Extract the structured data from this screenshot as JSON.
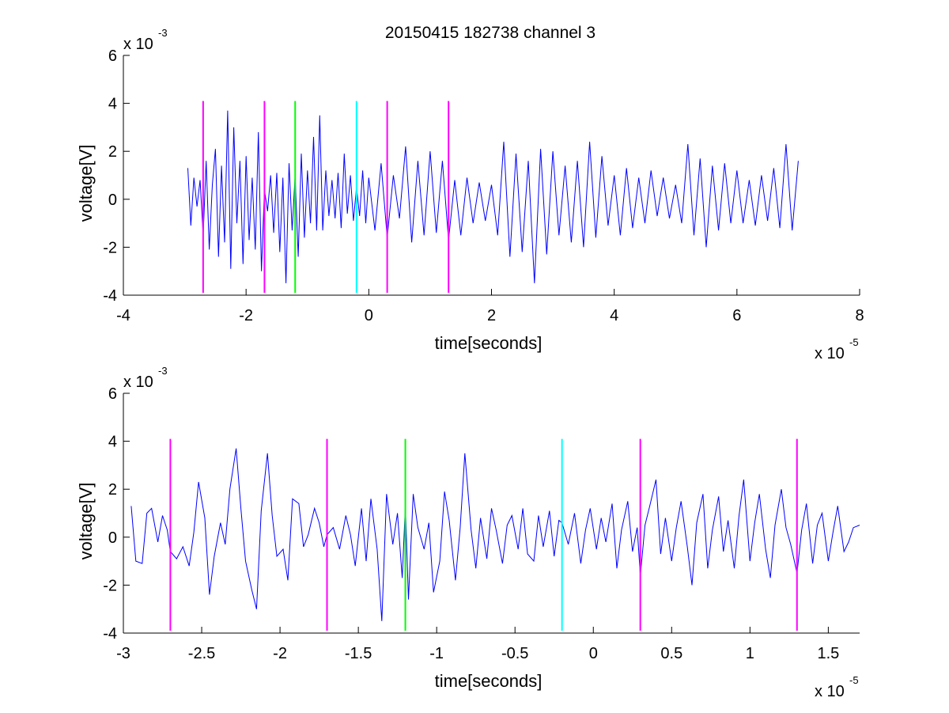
{
  "figure": {
    "title": "20150415 182738 channel 3"
  },
  "chart_data": [
    {
      "type": "line",
      "title": "20150415 182738 channel 3",
      "xlabel": "time[seconds]",
      "ylabel": "voltage[V]",
      "x_multiplier_base": "x 10",
      "x_multiplier_exp": "-5",
      "y_multiplier_base": "x 10",
      "y_multiplier_exp": "-3",
      "xlim": [
        -4,
        8
      ],
      "ylim": [
        -4,
        6
      ],
      "xticks": [
        -4,
        -2,
        0,
        2,
        4,
        6,
        8
      ],
      "xtick_labels": [
        "-4",
        "-2",
        "0",
        "2",
        "4",
        "6",
        "8"
      ],
      "yticks": [
        -4,
        -2,
        0,
        2,
        4,
        6
      ],
      "ytick_labels": [
        "-4",
        "-2",
        "0",
        "2",
        "4",
        "6"
      ],
      "grid": false,
      "signal_color": "#0000ff",
      "signal_x_range": [
        -2.95,
        7.0
      ],
      "signal_points": [
        [
          -2.95,
          1.3
        ],
        [
          -2.9,
          -1.1
        ],
        [
          -2.85,
          0.9
        ],
        [
          -2.8,
          -0.3
        ],
        [
          -2.75,
          0.8
        ],
        [
          -2.7,
          -1.5
        ],
        [
          -2.65,
          1.6
        ],
        [
          -2.6,
          -2.1
        ],
        [
          -2.55,
          0.6
        ],
        [
          -2.5,
          2.1
        ],
        [
          -2.45,
          -2.4
        ],
        [
          -2.4,
          1.4
        ],
        [
          -2.35,
          -1.8
        ],
        [
          -2.3,
          3.7
        ],
        [
          -2.25,
          -2.9
        ],
        [
          -2.2,
          3.0
        ],
        [
          -2.15,
          -1.0
        ],
        [
          -2.1,
          1.6
        ],
        [
          -2.05,
          -2.7
        ],
        [
          -2.0,
          1.8
        ],
        [
          -1.95,
          -1.7
        ],
        [
          -1.9,
          0.9
        ],
        [
          -1.85,
          -2.1
        ],
        [
          -1.8,
          2.8
        ],
        [
          -1.75,
          -3.0
        ],
        [
          -1.7,
          0.4
        ],
        [
          -1.65,
          -0.5
        ],
        [
          -1.6,
          1.0
        ],
        [
          -1.55,
          -1.4
        ],
        [
          -1.5,
          1.1
        ],
        [
          -1.45,
          -2.2
        ],
        [
          -1.4,
          0.9
        ],
        [
          -1.35,
          -3.5
        ],
        [
          -1.3,
          1.5
        ],
        [
          -1.25,
          -1.3
        ],
        [
          -1.2,
          1.0
        ],
        [
          -1.15,
          -2.4
        ],
        [
          -1.1,
          1.9
        ],
        [
          -1.05,
          -1.6
        ],
        [
          -1.0,
          1.2
        ],
        [
          -0.95,
          -1.0
        ],
        [
          -0.9,
          2.6
        ],
        [
          -0.85,
          -1.3
        ],
        [
          -0.8,
          3.5
        ],
        [
          -0.75,
          -1.3
        ],
        [
          -0.7,
          1.2
        ],
        [
          -0.65,
          -0.7
        ],
        [
          -0.6,
          0.8
        ],
        [
          -0.55,
          -0.8
        ],
        [
          -0.5,
          1.1
        ],
        [
          -0.45,
          -1.2
        ],
        [
          -0.4,
          1.9
        ],
        [
          -0.35,
          -0.6
        ],
        [
          -0.3,
          1.0
        ],
        [
          -0.25,
          -0.9
        ],
        [
          -0.2,
          0.5
        ],
        [
          -0.15,
          -0.7
        ],
        [
          -0.1,
          1.2
        ],
        [
          -0.05,
          -1.0
        ],
        [
          0.0,
          0.9
        ],
        [
          0.1,
          -1.3
        ],
        [
          0.2,
          1.5
        ],
        [
          0.3,
          -1.6
        ],
        [
          0.4,
          1.0
        ],
        [
          0.5,
          -0.8
        ],
        [
          0.6,
          2.2
        ],
        [
          0.7,
          -1.8
        ],
        [
          0.8,
          1.6
        ],
        [
          0.9,
          -1.5
        ],
        [
          1.0,
          2.0
        ],
        [
          1.1,
          -1.4
        ],
        [
          1.2,
          1.6
        ],
        [
          1.3,
          -1.7
        ],
        [
          1.4,
          0.8
        ],
        [
          1.5,
          -1.5
        ],
        [
          1.6,
          0.9
        ],
        [
          1.7,
          -1.0
        ],
        [
          1.8,
          0.7
        ],
        [
          1.9,
          -0.9
        ],
        [
          2.0,
          0.6
        ],
        [
          2.1,
          -1.5
        ],
        [
          2.2,
          2.4
        ],
        [
          2.3,
          -2.4
        ],
        [
          2.4,
          1.9
        ],
        [
          2.5,
          -2.2
        ],
        [
          2.6,
          1.6
        ],
        [
          2.7,
          -3.5
        ],
        [
          2.8,
          2.1
        ],
        [
          2.9,
          -2.3
        ],
        [
          3.0,
          2.0
        ],
        [
          3.1,
          -1.5
        ],
        [
          3.2,
          1.4
        ],
        [
          3.3,
          -1.8
        ],
        [
          3.4,
          1.6
        ],
        [
          3.5,
          -2.0
        ],
        [
          3.6,
          2.4
        ],
        [
          3.7,
          -1.6
        ],
        [
          3.8,
          1.8
        ],
        [
          3.9,
          -1.1
        ],
        [
          4.0,
          1.0
        ],
        [
          4.1,
          -1.5
        ],
        [
          4.2,
          1.3
        ],
        [
          4.3,
          -1.2
        ],
        [
          4.4,
          0.9
        ],
        [
          4.5,
          -1.0
        ],
        [
          4.6,
          1.2
        ],
        [
          4.7,
          -0.7
        ],
        [
          4.8,
          0.9
        ],
        [
          4.9,
          -0.8
        ],
        [
          5.0,
          0.6
        ],
        [
          5.1,
          -1.0
        ],
        [
          5.2,
          2.3
        ],
        [
          5.3,
          -1.5
        ],
        [
          5.4,
          1.7
        ],
        [
          5.5,
          -2.0
        ],
        [
          5.6,
          1.4
        ],
        [
          5.7,
          -1.3
        ],
        [
          5.8,
          1.5
        ],
        [
          5.9,
          -1.0
        ],
        [
          6.0,
          1.2
        ],
        [
          6.1,
          -1.0
        ],
        [
          6.2,
          0.8
        ],
        [
          6.3,
          -1.1
        ],
        [
          6.4,
          1.0
        ],
        [
          6.5,
          -0.9
        ],
        [
          6.6,
          1.3
        ],
        [
          6.7,
          -1.2
        ],
        [
          6.8,
          2.3
        ],
        [
          6.9,
          -1.3
        ],
        [
          7.0,
          1.6
        ]
      ],
      "vertical_markers": [
        {
          "x": -2.7,
          "color": "#ff00ff"
        },
        {
          "x": -1.7,
          "color": "#ff00ff"
        },
        {
          "x": -1.2,
          "color": "#00ff00"
        },
        {
          "x": -0.2,
          "color": "#00ffff"
        },
        {
          "x": 0.3,
          "color": "#ff00ff"
        },
        {
          "x": 1.3,
          "color": "#ff00ff"
        }
      ],
      "marker_y_range": [
        -3.9,
        4.1
      ]
    },
    {
      "type": "line",
      "xlabel": "time[seconds]",
      "ylabel": "voltage[V]",
      "x_multiplier_base": "x 10",
      "x_multiplier_exp": "-5",
      "y_multiplier_base": "x 10",
      "y_multiplier_exp": "-3",
      "xlim": [
        -3.0,
        1.7
      ],
      "ylim": [
        -4,
        6
      ],
      "xticks": [
        -3,
        -2.5,
        -2,
        -1.5,
        -1,
        -0.5,
        0,
        0.5,
        1,
        1.5
      ],
      "xtick_labels": [
        "-3",
        "-2.5",
        "-2",
        "-1.5",
        "-1",
        "-0.5",
        "0",
        "0.5",
        "1",
        "1.5"
      ],
      "yticks": [
        -4,
        -2,
        0,
        2,
        4,
        6
      ],
      "ytick_labels": [
        "-4",
        "-2",
        "0",
        "2",
        "4",
        "6"
      ],
      "grid": false,
      "signal_color": "#0000ff",
      "signal_x_range": [
        -2.95,
        1.7
      ],
      "signal_points": [
        [
          -2.95,
          1.3
        ],
        [
          -2.92,
          -1.0
        ],
        [
          -2.88,
          -1.1
        ],
        [
          -2.85,
          1.0
        ],
        [
          -2.82,
          1.2
        ],
        [
          -2.78,
          -0.2
        ],
        [
          -2.75,
          0.9
        ],
        [
          -2.72,
          0.3
        ],
        [
          -2.7,
          -0.6
        ],
        [
          -2.66,
          -0.9
        ],
        [
          -2.62,
          -0.4
        ],
        [
          -2.58,
          -1.2
        ],
        [
          -2.55,
          0.2
        ],
        [
          -2.52,
          2.3
        ],
        [
          -2.48,
          0.8
        ],
        [
          -2.45,
          -2.4
        ],
        [
          -2.42,
          -0.8
        ],
        [
          -2.38,
          0.6
        ],
        [
          -2.35,
          -0.3
        ],
        [
          -2.32,
          2.0
        ],
        [
          -2.28,
          3.7
        ],
        [
          -2.25,
          1.2
        ],
        [
          -2.22,
          -1.0
        ],
        [
          -2.18,
          -2.2
        ],
        [
          -2.15,
          -3.0
        ],
        [
          -2.12,
          1.1
        ],
        [
          -2.08,
          3.5
        ],
        [
          -2.05,
          0.9
        ],
        [
          -2.02,
          -0.8
        ],
        [
          -1.98,
          -0.5
        ],
        [
          -1.95,
          -1.8
        ],
        [
          -1.92,
          1.6
        ],
        [
          -1.88,
          1.4
        ],
        [
          -1.85,
          -0.4
        ],
        [
          -1.82,
          0.1
        ],
        [
          -1.78,
          1.2
        ],
        [
          -1.75,
          0.6
        ],
        [
          -1.72,
          -0.4
        ],
        [
          -1.7,
          0.1
        ],
        [
          -1.66,
          0.4
        ],
        [
          -1.62,
          -0.5
        ],
        [
          -1.58,
          0.9
        ],
        [
          -1.55,
          0.1
        ],
        [
          -1.52,
          -1.2
        ],
        [
          -1.48,
          1.2
        ],
        [
          -1.45,
          -1.0
        ],
        [
          -1.42,
          1.6
        ],
        [
          -1.38,
          -0.5
        ],
        [
          -1.35,
          -3.5
        ],
        [
          -1.32,
          1.8
        ],
        [
          -1.28,
          -0.3
        ],
        [
          -1.25,
          1.0
        ],
        [
          -1.22,
          -1.7
        ],
        [
          -1.2,
          1.3
        ],
        [
          -1.18,
          -2.6
        ],
        [
          -1.15,
          1.8
        ],
        [
          -1.12,
          0.4
        ],
        [
          -1.08,
          -0.5
        ],
        [
          -1.05,
          0.6
        ],
        [
          -1.02,
          -2.3
        ],
        [
          -0.98,
          -1.0
        ],
        [
          -0.95,
          1.9
        ],
        [
          -0.92,
          0.7
        ],
        [
          -0.88,
          -1.8
        ],
        [
          -0.85,
          0.4
        ],
        [
          -0.82,
          3.5
        ],
        [
          -0.78,
          0.3
        ],
        [
          -0.75,
          -1.3
        ],
        [
          -0.72,
          0.8
        ],
        [
          -0.68,
          -0.9
        ],
        [
          -0.65,
          1.2
        ],
        [
          -0.62,
          0.3
        ],
        [
          -0.58,
          -1.1
        ],
        [
          -0.55,
          0.5
        ],
        [
          -0.52,
          0.9
        ],
        [
          -0.48,
          -0.5
        ],
        [
          -0.45,
          1.2
        ],
        [
          -0.42,
          -0.7
        ],
        [
          -0.38,
          -1.0
        ],
        [
          -0.35,
          0.9
        ],
        [
          -0.32,
          -0.4
        ],
        [
          -0.28,
          1.1
        ],
        [
          -0.25,
          -0.8
        ],
        [
          -0.22,
          0.7
        ],
        [
          -0.2,
          0.6
        ],
        [
          -0.16,
          -0.3
        ],
        [
          -0.12,
          1.0
        ],
        [
          -0.08,
          -1.1
        ],
        [
          -0.05,
          0.3
        ],
        [
          -0.02,
          1.2
        ],
        [
          0.02,
          -0.5
        ],
        [
          0.05,
          0.8
        ],
        [
          0.08,
          -0.2
        ],
        [
          0.12,
          1.4
        ],
        [
          0.15,
          -1.3
        ],
        [
          0.18,
          0.3
        ],
        [
          0.22,
          1.5
        ],
        [
          0.25,
          -0.6
        ],
        [
          0.28,
          0.4
        ],
        [
          0.3,
          -1.6
        ],
        [
          0.33,
          0.5
        ],
        [
          0.36,
          1.3
        ],
        [
          0.4,
          2.4
        ],
        [
          0.43,
          -0.7
        ],
        [
          0.46,
          0.8
        ],
        [
          0.5,
          -1.0
        ],
        [
          0.53,
          0.4
        ],
        [
          0.56,
          1.5
        ],
        [
          0.6,
          -0.4
        ],
        [
          0.63,
          -2.0
        ],
        [
          0.66,
          0.6
        ],
        [
          0.7,
          1.8
        ],
        [
          0.73,
          -1.3
        ],
        [
          0.76,
          0.3
        ],
        [
          0.8,
          1.7
        ],
        [
          0.83,
          -0.6
        ],
        [
          0.86,
          0.7
        ],
        [
          0.9,
          -1.3
        ],
        [
          0.93,
          0.9
        ],
        [
          0.96,
          2.4
        ],
        [
          1.0,
          -1.0
        ],
        [
          1.03,
          0.6
        ],
        [
          1.06,
          1.8
        ],
        [
          1.1,
          -0.5
        ],
        [
          1.13,
          -1.7
        ],
        [
          1.16,
          0.5
        ],
        [
          1.2,
          2.0
        ],
        [
          1.23,
          0.4
        ],
        [
          1.26,
          -0.3
        ],
        [
          1.3,
          -1.5
        ],
        [
          1.33,
          0.3
        ],
        [
          1.36,
          1.4
        ],
        [
          1.4,
          -1.1
        ],
        [
          1.43,
          0.5
        ],
        [
          1.46,
          1.0
        ],
        [
          1.5,
          -1.0
        ],
        [
          1.53,
          0.2
        ],
        [
          1.56,
          1.3
        ],
        [
          1.6,
          -0.6
        ],
        [
          1.63,
          -0.2
        ],
        [
          1.66,
          0.4
        ],
        [
          1.7,
          0.5
        ]
      ],
      "vertical_markers": [
        {
          "x": -2.7,
          "color": "#ff00ff"
        },
        {
          "x": -1.7,
          "color": "#ff00ff"
        },
        {
          "x": -1.2,
          "color": "#00ff00"
        },
        {
          "x": -0.2,
          "color": "#00ffff"
        },
        {
          "x": 0.3,
          "color": "#ff00ff"
        },
        {
          "x": 1.3,
          "color": "#ff00ff"
        }
      ],
      "marker_y_range": [
        -3.9,
        4.1
      ]
    }
  ]
}
